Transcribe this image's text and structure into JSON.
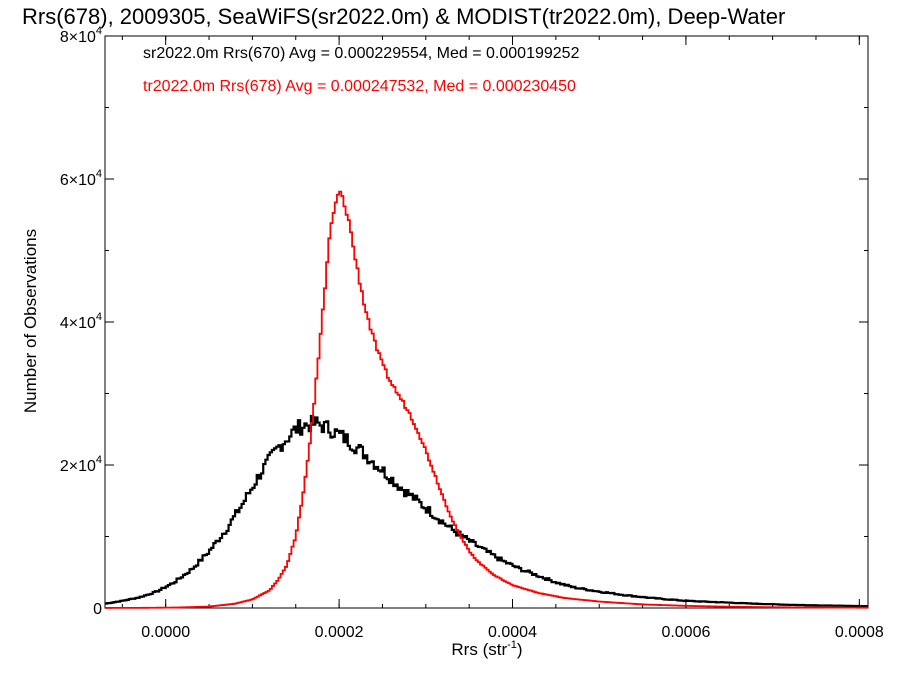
{
  "chart_data": {
    "type": "line",
    "title": "Rrs(678), 2009305, SeaWiFS(sr2022.0m) & MODIST(tr2022.0m), Deep-Water",
    "xlabel": "Rrs (str",
    "xlabel_sup": "-1",
    "xlabel_end": ")",
    "ylabel": "Number of Observations",
    "xlim": [
      -7e-05,
      0.00081
    ],
    "ylim": [
      0,
      80000
    ],
    "x_ticks": [
      0.0,
      0.0002,
      0.0004,
      0.0006,
      0.0008
    ],
    "x_tick_labels": [
      "0.0000",
      "0.0002",
      "0.0004",
      "0.0006",
      "0.0008"
    ],
    "y_ticks": [
      0,
      20000,
      40000,
      60000,
      80000
    ],
    "y_tick_labels": [
      {
        "base": "0",
        "exp": ""
      },
      {
        "base": "2×10",
        "exp": "4"
      },
      {
        "base": "4×10",
        "exp": "4"
      },
      {
        "base": "6×10",
        "exp": "4"
      },
      {
        "base": "8×10",
        "exp": "4"
      }
    ],
    "annotations": [
      "sr2022.0m Rrs(670) Avg = 0.000229554, Med = 0.000199252",
      "tr2022.0m Rrs(678) Avg = 0.000247532, Med = 0.000230450"
    ],
    "series": [
      {
        "color": "#000000",
        "points": [
          [
            -7e-05,
            600
          ],
          [
            -5e-05,
            1000
          ],
          [
            -3e-05,
            1500
          ],
          [
            -1e-05,
            2300
          ],
          [
            1e-05,
            3600
          ],
          [
            3e-05,
            5400
          ],
          [
            5e-05,
            7900
          ],
          [
            7e-05,
            11000
          ],
          [
            9e-05,
            14800
          ],
          [
            0.00011,
            19000
          ],
          [
            0.00013,
            22500
          ],
          [
            0.00015,
            25000
          ],
          [
            0.00016,
            25600
          ],
          [
            0.000175,
            25800
          ],
          [
            0.00019,
            25000
          ],
          [
            0.00021,
            23500
          ],
          [
            0.00023,
            21500
          ],
          [
            0.00025,
            19300
          ],
          [
            0.00027,
            17000
          ],
          [
            0.00029,
            15000
          ],
          [
            0.00031,
            13000
          ],
          [
            0.00033,
            11000
          ],
          [
            0.00035,
            9400
          ],
          [
            0.00037,
            7900
          ],
          [
            0.00039,
            6500
          ],
          [
            0.00041,
            5400
          ],
          [
            0.00043,
            4500
          ],
          [
            0.00045,
            3600
          ],
          [
            0.00047,
            2900
          ],
          [
            0.0005,
            2300
          ],
          [
            0.00053,
            1800
          ],
          [
            0.00056,
            1400
          ],
          [
            0.0006,
            1000
          ],
          [
            0.00064,
            800
          ],
          [
            0.00068,
            600
          ],
          [
            0.00072,
            450
          ],
          [
            0.00076,
            350
          ],
          [
            0.00081,
            250
          ]
        ]
      },
      {
        "color": "#ff0000",
        "points": [
          [
            -7e-05,
            10
          ],
          [
            -3e-05,
            20
          ],
          [
            1e-05,
            60
          ],
          [
            5e-05,
            200
          ],
          [
            8e-05,
            600
          ],
          [
            0.0001,
            1200
          ],
          [
            0.00012,
            2500
          ],
          [
            0.00013,
            4000
          ],
          [
            0.00014,
            6000
          ],
          [
            0.00015,
            10000
          ],
          [
            0.00016,
            17000
          ],
          [
            0.00017,
            27000
          ],
          [
            0.00018,
            40000
          ],
          [
            0.00019,
            53000
          ],
          [
            0.0002,
            58500
          ],
          [
            0.00021,
            55000
          ],
          [
            0.00022,
            48000
          ],
          [
            0.00023,
            42000
          ],
          [
            0.00024,
            37500
          ],
          [
            0.00025,
            34000
          ],
          [
            0.00026,
            31500
          ],
          [
            0.00027,
            29500
          ],
          [
            0.00028,
            27500
          ],
          [
            0.00029,
            25000
          ],
          [
            0.0003,
            22000
          ],
          [
            0.00031,
            18800
          ],
          [
            0.00032,
            15500
          ],
          [
            0.00033,
            12500
          ],
          [
            0.00034,
            10000
          ],
          [
            0.00035,
            8000
          ],
          [
            0.00036,
            6500
          ],
          [
            0.00038,
            4500
          ],
          [
            0.0004,
            3200
          ],
          [
            0.00043,
            2100
          ],
          [
            0.00046,
            1400
          ],
          [
            0.0005,
            900
          ],
          [
            0.00055,
            500
          ],
          [
            0.0006,
            300
          ],
          [
            0.00065,
            180
          ],
          [
            0.0007,
            110
          ],
          [
            0.00075,
            70
          ],
          [
            0.00081,
            40
          ]
        ]
      }
    ]
  }
}
